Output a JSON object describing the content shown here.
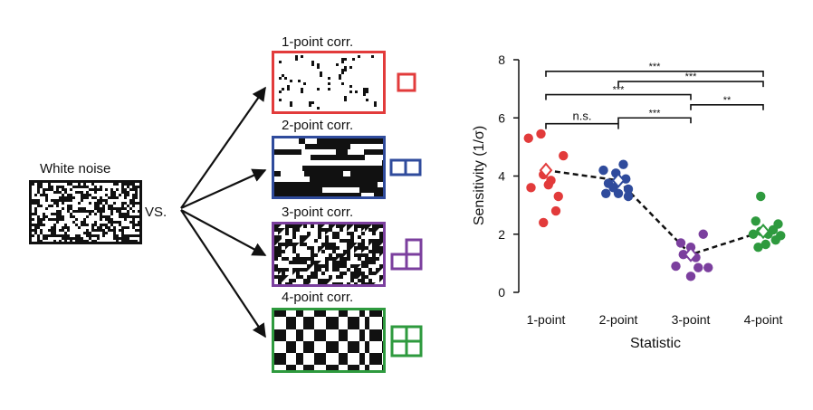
{
  "left_panel": {
    "baseline_label": "White noise",
    "vs_label": "VS.",
    "panels": [
      {
        "id": "p1",
        "label": "1-point corr.",
        "color": "#e23b3b",
        "kind": "sparse"
      },
      {
        "id": "p2",
        "label": "2-point corr.",
        "color": "#2f4b9c",
        "kind": "stripes"
      },
      {
        "id": "p3",
        "label": "3-point corr.",
        "color": "#7b3f9e",
        "kind": "triangles"
      },
      {
        "id": "p4",
        "label": "4-point corr.",
        "color": "#2e9a3e",
        "kind": "checker"
      }
    ]
  },
  "chart_data": {
    "type": "scatter",
    "xlabel": "Statistic",
    "ylabel": "Sensitivity (1/σ)",
    "categories": [
      "1-point",
      "2-point",
      "3-point",
      "4-point"
    ],
    "ylim": [
      0,
      8
    ],
    "yticks": [
      0,
      2,
      4,
      6,
      8
    ],
    "series": [
      {
        "category": "1-point",
        "color": "#e23b3b",
        "points": [
          [
            -0.35,
            5.3
          ],
          [
            -0.1,
            5.45
          ],
          [
            0.35,
            4.7
          ],
          [
            -0.05,
            4.05
          ],
          [
            0.1,
            3.85
          ],
          [
            -0.3,
            3.6
          ],
          [
            0.05,
            3.7
          ],
          [
            0.25,
            3.3
          ],
          [
            0.2,
            2.8
          ],
          [
            -0.05,
            2.4
          ]
        ],
        "mean": 4.2
      },
      {
        "category": "2-point",
        "color": "#2f4b9c",
        "points": [
          [
            0.1,
            4.4
          ],
          [
            -0.3,
            4.2
          ],
          [
            -0.05,
            4.1
          ],
          [
            0.15,
            3.9
          ],
          [
            -0.2,
            3.75
          ],
          [
            -0.1,
            3.6
          ],
          [
            0.2,
            3.55
          ],
          [
            0.0,
            3.4
          ],
          [
            -0.25,
            3.4
          ],
          [
            0.2,
            3.3
          ]
        ],
        "mean": 3.85
      },
      {
        "category": "3-point",
        "color": "#7b3f9e",
        "points": [
          [
            -0.2,
            1.7
          ],
          [
            0.25,
            2.0
          ],
          [
            0.0,
            1.55
          ],
          [
            0.1,
            1.2
          ],
          [
            -0.15,
            1.3
          ],
          [
            0.15,
            0.85
          ],
          [
            -0.3,
            0.9
          ],
          [
            0.35,
            0.85
          ],
          [
            0.0,
            0.55
          ]
        ],
        "mean": 1.3
      },
      {
        "category": "4-point",
        "color": "#2e9a3e",
        "points": [
          [
            -0.05,
            3.3
          ],
          [
            -0.15,
            2.45
          ],
          [
            0.3,
            2.35
          ],
          [
            0.2,
            2.15
          ],
          [
            -0.05,
            2.1
          ],
          [
            0.35,
            1.95
          ],
          [
            0.1,
            2.0
          ],
          [
            -0.2,
            2.0
          ],
          [
            0.05,
            1.65
          ],
          [
            -0.1,
            1.55
          ],
          [
            0.25,
            1.8
          ]
        ],
        "mean": 2.1
      }
    ],
    "significance": [
      {
        "from": "1-point",
        "to": "2-point",
        "label": "n.s.",
        "y": 5.8
      },
      {
        "from": "2-point",
        "to": "3-point",
        "label": "***",
        "y": 6.0
      },
      {
        "from": "3-point",
        "to": "4-point",
        "label": "**",
        "y": 6.45
      },
      {
        "from": "1-point",
        "to": "3-point",
        "label": "***",
        "y": 6.8
      },
      {
        "from": "2-point",
        "to": "4-point",
        "label": "***",
        "y": 7.25
      },
      {
        "from": "1-point",
        "to": "4-point",
        "label": "***",
        "y": 7.6
      }
    ]
  }
}
